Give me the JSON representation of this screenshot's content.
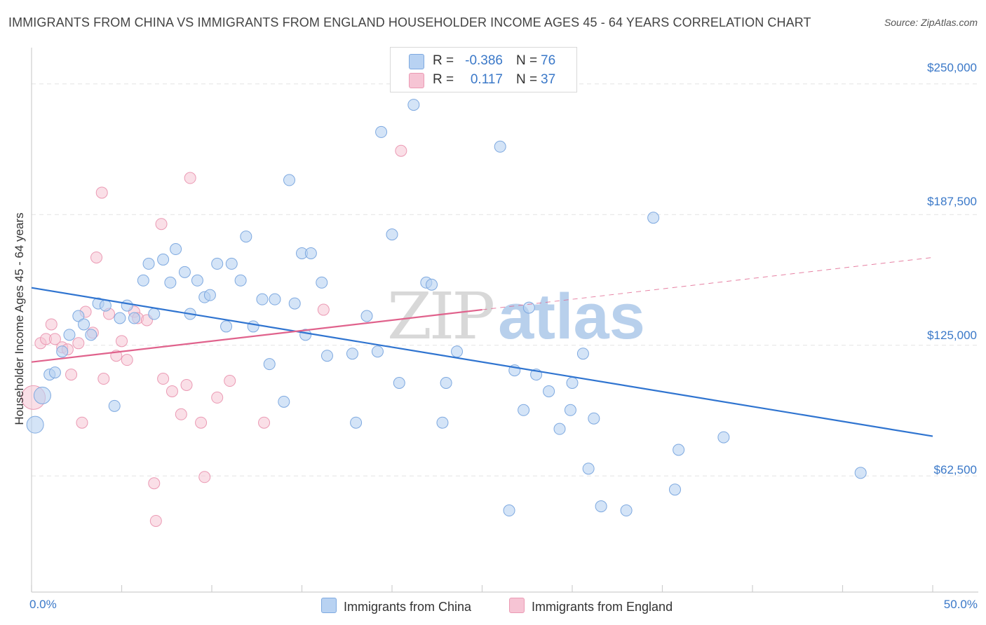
{
  "title": "IMMIGRANTS FROM CHINA VS IMMIGRANTS FROM ENGLAND HOUSEHOLDER INCOME AGES 45 - 64 YEARS CORRELATION CHART",
  "source": "Source: ZipAtlas.com",
  "watermark": {
    "zip": "ZIP",
    "atlas": "atlas"
  },
  "legend": {
    "china": {
      "r_label": "R =",
      "r": "-0.386",
      "n_label": "N =",
      "n": "76"
    },
    "england": {
      "r_label": "R =",
      "r": "0.117",
      "n_label": "N =",
      "n": "37"
    }
  },
  "bottom_legend": {
    "china": "Immigrants from China",
    "england": "Immigrants from England"
  },
  "colors": {
    "china_fill": "#b8d2f2",
    "china_stroke": "#7ea9e0",
    "china_line": "#2f74d0",
    "england_fill": "#f6c4d4",
    "england_stroke": "#eb9ab4",
    "england_line": "#e0628c",
    "accent_text": "#3a78c8",
    "grid": "#e3e3e3"
  },
  "chart_data": {
    "type": "scatter",
    "title": "IMMIGRANTS FROM CHINA VS IMMIGRANTS FROM ENGLAND HOUSEHOLDER INCOME AGES 45 - 64 YEARS CORRELATION CHART",
    "xlabel": "",
    "ylabel": "Householder Income Ages 45 - 64 years",
    "x_tick_labels": [
      "0.0%",
      "50.0%"
    ],
    "y_tick_labels": [
      "$62,500",
      "$125,000",
      "$187,500",
      "$250,000"
    ],
    "y_tick_values": [
      62500,
      125000,
      187500,
      250000
    ],
    "xlim": [
      0,
      50
    ],
    "ylim": [
      12000,
      265000
    ],
    "grid": true,
    "legend_position": "top-center",
    "series": [
      {
        "name": "Immigrants from China",
        "r": -0.386,
        "n": 76,
        "trend": {
          "x": [
            0,
            50
          ],
          "y": [
            152500,
            81500
          ]
        },
        "points": [
          [
            0.2,
            87000
          ],
          [
            0.6,
            101000
          ],
          [
            1.0,
            111000
          ],
          [
            1.3,
            112000
          ],
          [
            1.7,
            122000
          ],
          [
            2.1,
            130000
          ],
          [
            2.6,
            139000
          ],
          [
            2.9,
            135000
          ],
          [
            3.3,
            130000
          ],
          [
            3.7,
            145000
          ],
          [
            4.1,
            144000
          ],
          [
            4.6,
            96000
          ],
          [
            4.9,
            138000
          ],
          [
            5.3,
            144000
          ],
          [
            5.7,
            138000
          ],
          [
            6.2,
            156000
          ],
          [
            6.5,
            164000
          ],
          [
            6.8,
            140000
          ],
          [
            7.3,
            166000
          ],
          [
            7.7,
            155000
          ],
          [
            8.0,
            171000
          ],
          [
            8.5,
            160000
          ],
          [
            8.8,
            140000
          ],
          [
            9.2,
            156000
          ],
          [
            9.6,
            148000
          ],
          [
            9.9,
            149000
          ],
          [
            10.3,
            164000
          ],
          [
            10.8,
            134000
          ],
          [
            11.1,
            164000
          ],
          [
            11.6,
            156000
          ],
          [
            11.9,
            177000
          ],
          [
            12.3,
            134000
          ],
          [
            12.8,
            147000
          ],
          [
            13.2,
            116000
          ],
          [
            13.5,
            147000
          ],
          [
            14.0,
            98000
          ],
          [
            14.3,
            204000
          ],
          [
            14.6,
            145000
          ],
          [
            15.0,
            169000
          ],
          [
            15.5,
            169000
          ],
          [
            15.2,
            130000
          ],
          [
            16.1,
            155000
          ],
          [
            16.4,
            120000
          ],
          [
            17.8,
            121000
          ],
          [
            18.0,
            88000
          ],
          [
            18.6,
            139000
          ],
          [
            19.4,
            227000
          ],
          [
            19.2,
            122000
          ],
          [
            20.0,
            178000
          ],
          [
            20.4,
            107000
          ],
          [
            21.2,
            240000
          ],
          [
            21.9,
            155000
          ],
          [
            22.2,
            154000
          ],
          [
            22.8,
            88000
          ],
          [
            23.0,
            107000
          ],
          [
            23.6,
            122000
          ],
          [
            26.0,
            220000
          ],
          [
            26.5,
            46000
          ],
          [
            26.8,
            113000
          ],
          [
            27.3,
            94000
          ],
          [
            27.6,
            143000
          ],
          [
            28.0,
            111000
          ],
          [
            28.7,
            103000
          ],
          [
            29.3,
            85000
          ],
          [
            29.9,
            94000
          ],
          [
            30.0,
            107000
          ],
          [
            30.6,
            121000
          ],
          [
            30.9,
            66000
          ],
          [
            31.2,
            90000
          ],
          [
            31.6,
            48000
          ],
          [
            33.0,
            46000
          ],
          [
            34.5,
            186000
          ],
          [
            35.7,
            56000
          ],
          [
            35.9,
            75000
          ],
          [
            38.4,
            81000
          ],
          [
            46.0,
            64000
          ]
        ]
      },
      {
        "name": "Immigrants from England",
        "r": 0.117,
        "n": 37,
        "trend": {
          "x": [
            0,
            25
          ],
          "y": [
            117000,
            142000
          ]
        },
        "trend_extension": {
          "x": [
            25,
            50
          ],
          "y": [
            142000,
            167000
          ]
        },
        "points": [
          [
            0.1,
            100000
          ],
          [
            0.5,
            126000
          ],
          [
            0.8,
            128000
          ],
          [
            1.1,
            135000
          ],
          [
            1.3,
            128000
          ],
          [
            1.7,
            124000
          ],
          [
            2.0,
            123000
          ],
          [
            2.2,
            111000
          ],
          [
            2.6,
            126000
          ],
          [
            2.8,
            88000
          ],
          [
            3.0,
            141000
          ],
          [
            3.4,
            131000
          ],
          [
            3.6,
            167000
          ],
          [
            3.9,
            198000
          ],
          [
            4.0,
            109000
          ],
          [
            4.3,
            140000
          ],
          [
            4.7,
            120000
          ],
          [
            5.0,
            127000
          ],
          [
            5.3,
            118000
          ],
          [
            5.7,
            141000
          ],
          [
            5.9,
            138000
          ],
          [
            6.4,
            137000
          ],
          [
            6.8,
            59000
          ],
          [
            6.9,
            41000
          ],
          [
            7.2,
            183000
          ],
          [
            7.3,
            109000
          ],
          [
            7.8,
            103000
          ],
          [
            8.3,
            92000
          ],
          [
            8.6,
            106000
          ],
          [
            8.8,
            205000
          ],
          [
            9.4,
            88000
          ],
          [
            9.6,
            62000
          ],
          [
            10.3,
            100000
          ],
          [
            11.0,
            108000
          ],
          [
            12.9,
            88000
          ],
          [
            16.2,
            142000
          ],
          [
            20.5,
            218000
          ]
        ]
      }
    ]
  }
}
